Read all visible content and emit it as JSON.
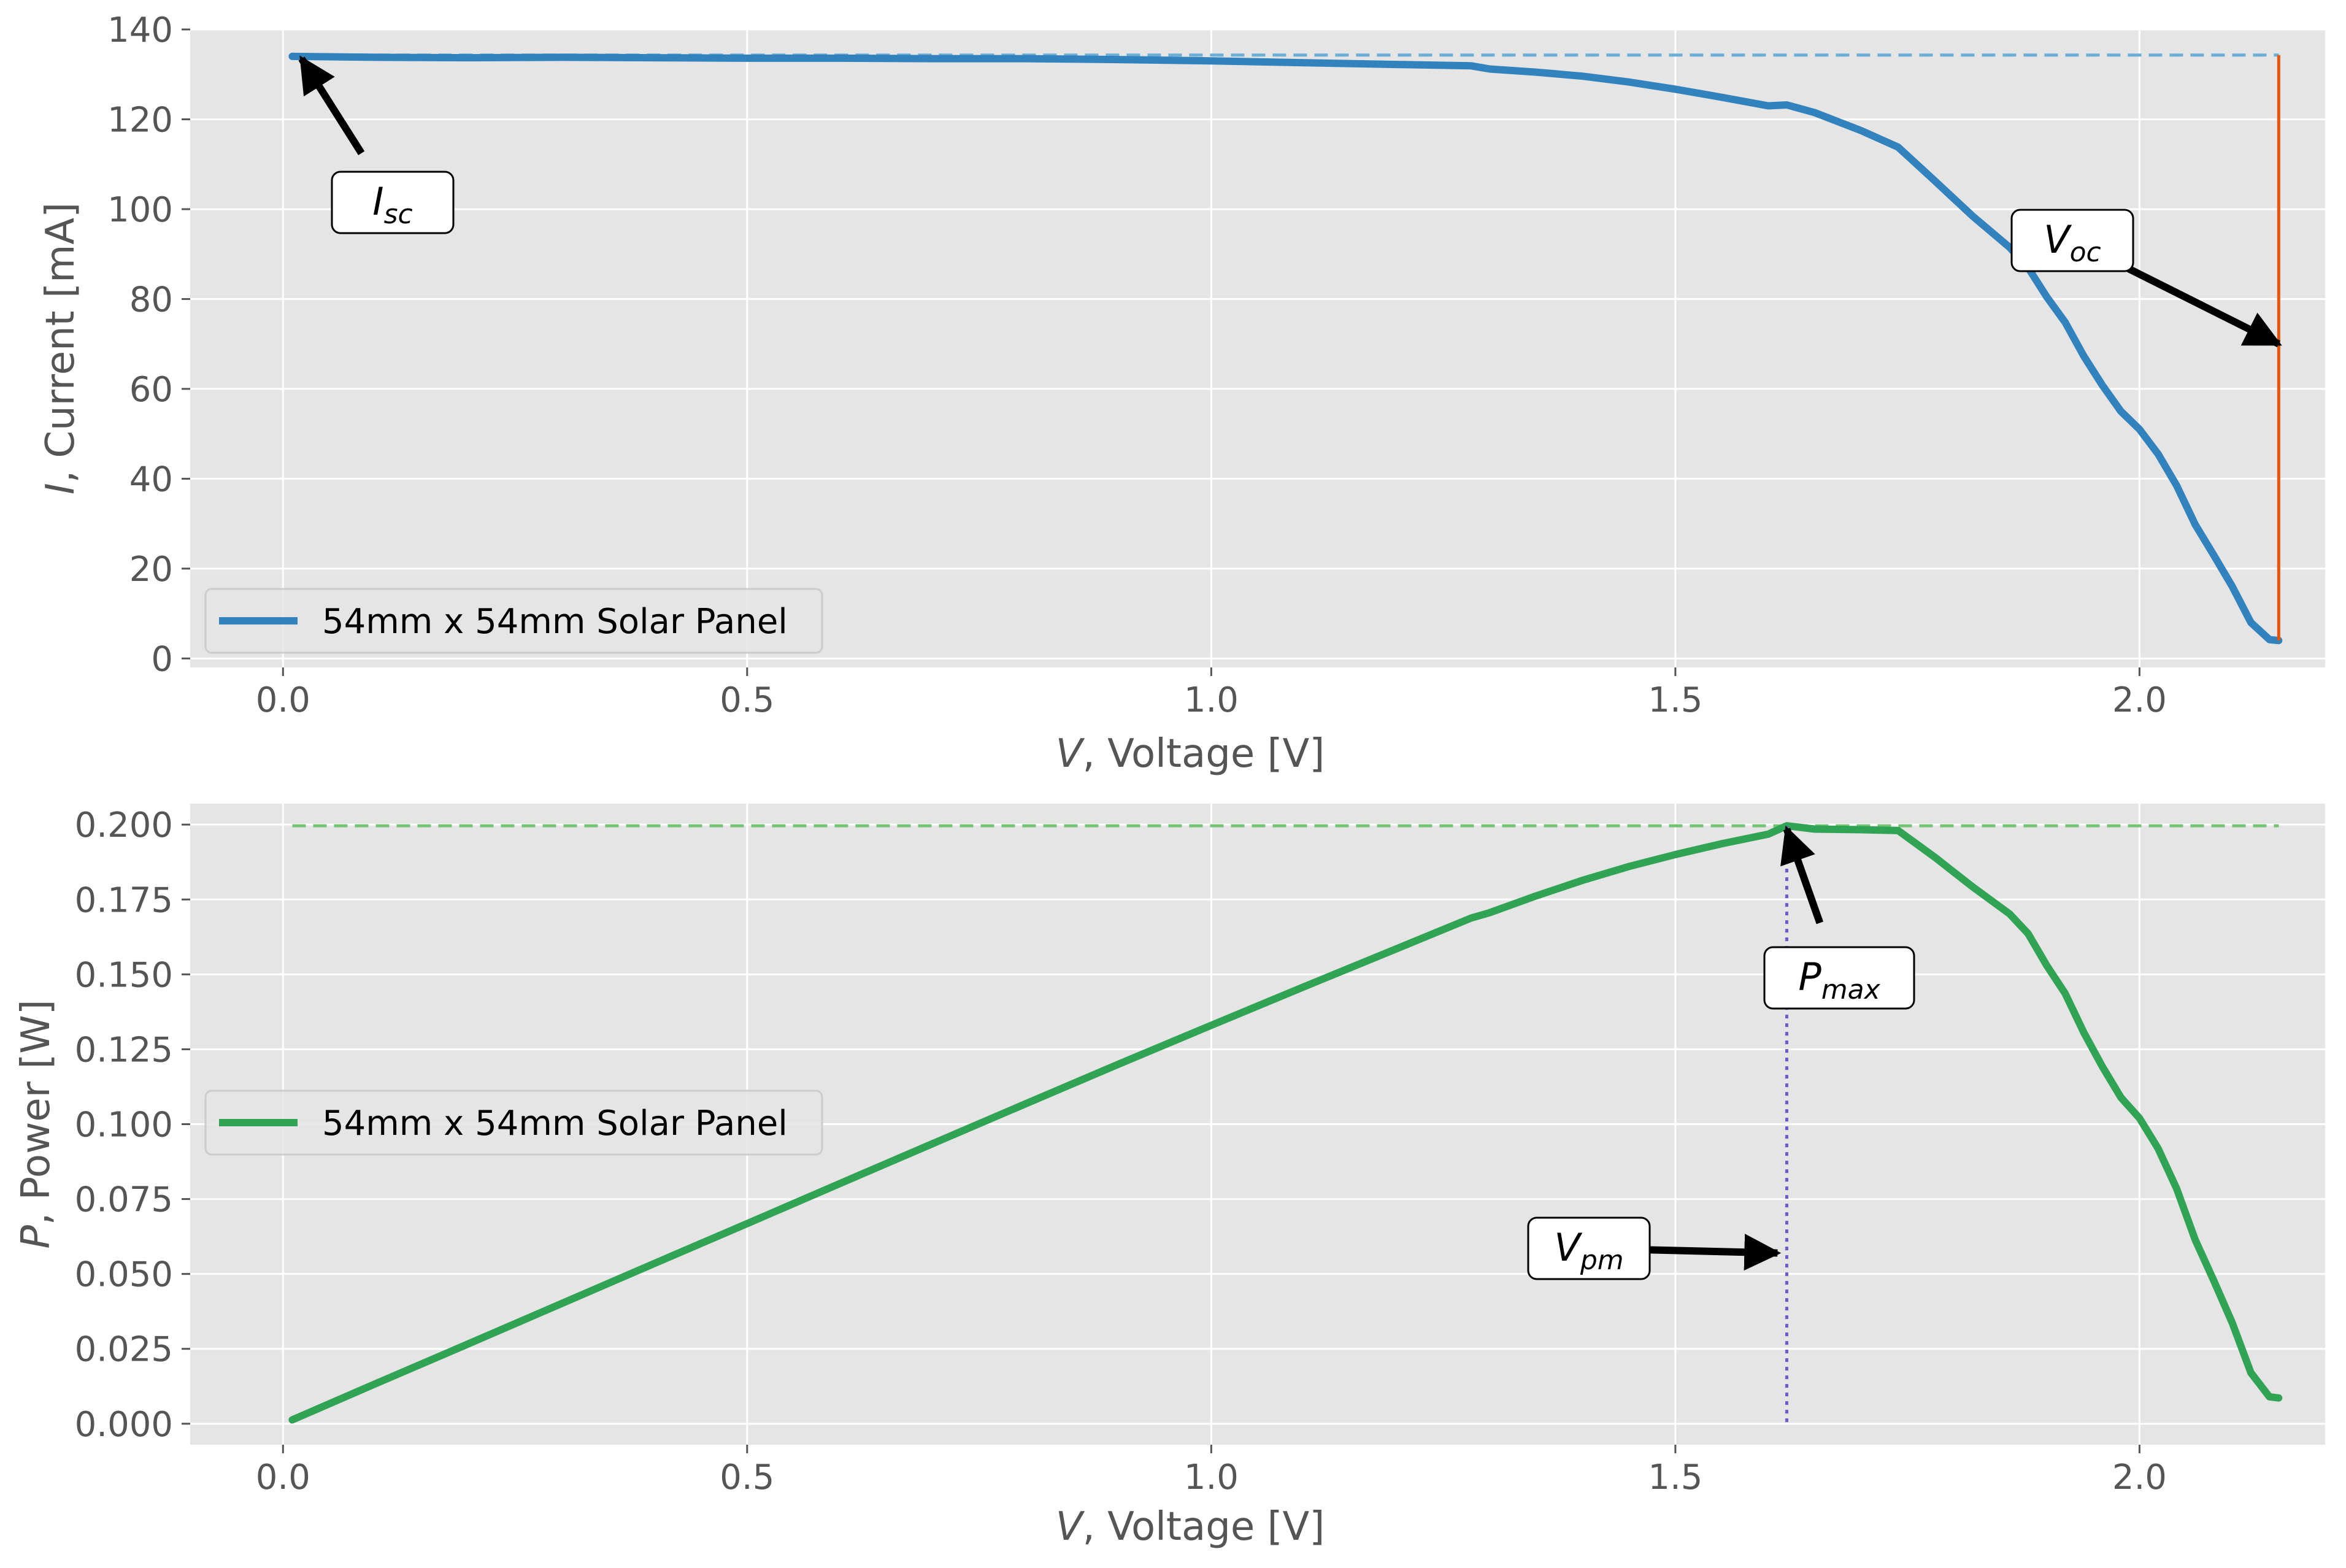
{
  "colors": {
    "background": "#ffffff",
    "axes_face": "#e5e5e5",
    "grid": "#ffffff",
    "current_series": "#3182bd",
    "power_series": "#31a354",
    "isc_reference": "#6baed6",
    "voc_line": "#e6550d",
    "pmax_reference": "#74c476",
    "vpm_line": "#6a5acd"
  },
  "chart_data": [
    {
      "type": "line",
      "title": "",
      "xlabel_var": "V",
      "xlabel_rest": ", Voltage [V]",
      "ylabel_var": "I",
      "ylabel_rest": ", Current [mA]",
      "xlim": [
        -0.1,
        2.2
      ],
      "ylim": [
        -2,
        140
      ],
      "xticks": [
        0.0,
        0.5,
        1.0,
        1.5,
        2.0
      ],
      "yticks": [
        0,
        20,
        40,
        60,
        80,
        100,
        120,
        140
      ],
      "xtick_labels": [
        "0.0",
        "0.5",
        "1.0",
        "1.5",
        "2.0"
      ],
      "ytick_labels": [
        "0",
        "20",
        "40",
        "60",
        "80",
        "100",
        "120",
        "140"
      ],
      "grid": true,
      "legend": {
        "position": "lower-left",
        "entries": [
          "54mm x 54mm Solar Panel"
        ]
      },
      "series": [
        {
          "name": "54mm x 54mm Solar Panel",
          "x": [
            0.01,
            0.1,
            0.2,
            0.3,
            0.4,
            0.5,
            0.6,
            0.7,
            0.8,
            0.9,
            1.0,
            1.1,
            1.2,
            1.28,
            1.3,
            1.35,
            1.4,
            1.45,
            1.5,
            1.55,
            1.6,
            1.62,
            1.65,
            1.7,
            1.74,
            1.78,
            1.82,
            1.86,
            1.88,
            1.9,
            1.92,
            1.94,
            1.96,
            1.98,
            2.0,
            2.02,
            2.04,
            2.06,
            2.08,
            2.1,
            2.12,
            2.14,
            2.15
          ],
          "y": [
            134,
            133.8,
            133.7,
            133.8,
            133.7,
            133.6,
            133.6,
            133.5,
            133.5,
            133.3,
            133.0,
            132.6,
            132.2,
            131.9,
            131.2,
            130.5,
            129.6,
            128.3,
            126.7,
            124.9,
            123.0,
            123.2,
            121.5,
            117.5,
            113.8,
            106.2,
            98.5,
            91.5,
            87.0,
            80.5,
            74.8,
            67.3,
            60.8,
            55.0,
            51.0,
            45.5,
            38.5,
            29.8,
            23.0,
            16.0,
            8.0,
            4.2,
            4.0
          ]
        }
      ],
      "reference_lines": {
        "isc_level": 134.3,
        "voc_voltage": 2.15
      },
      "annotations": [
        {
          "main": "I",
          "sub": "sc",
          "target_x": 0.02,
          "target_y": 133.5
        },
        {
          "main": "V",
          "sub": "oc",
          "target_x": 2.15,
          "target_y": 70
        }
      ]
    },
    {
      "type": "line",
      "title": "",
      "xlabel_var": "V",
      "xlabel_rest": ", Voltage [V]",
      "ylabel_var": "P",
      "ylabel_rest": ", Power [W]",
      "xlim": [
        -0.1,
        2.2
      ],
      "ylim": [
        -0.007,
        0.207
      ],
      "xticks": [
        0.0,
        0.5,
        1.0,
        1.5,
        2.0
      ],
      "yticks": [
        0.0,
        0.025,
        0.05,
        0.075,
        0.1,
        0.125,
        0.15,
        0.175,
        0.2
      ],
      "xtick_labels": [
        "0.0",
        "0.5",
        "1.0",
        "1.5",
        "2.0"
      ],
      "ytick_labels": [
        "0.000",
        "0.025",
        "0.050",
        "0.075",
        "0.100",
        "0.125",
        "0.150",
        "0.175",
        "0.200"
      ],
      "grid": true,
      "legend": {
        "position": "center-left",
        "entries": [
          "54mm x 54mm Solar Panel"
        ]
      },
      "series": [
        {
          "name": "54mm x 54mm Solar Panel",
          "x": [
            0.01,
            0.1,
            0.2,
            0.3,
            0.4,
            0.5,
            0.6,
            0.7,
            0.8,
            0.9,
            1.0,
            1.1,
            1.2,
            1.28,
            1.3,
            1.35,
            1.4,
            1.45,
            1.5,
            1.55,
            1.6,
            1.62,
            1.65,
            1.7,
            1.74,
            1.78,
            1.82,
            1.86,
            1.88,
            1.9,
            1.92,
            1.94,
            1.96,
            1.98,
            2.0,
            2.02,
            2.04,
            2.06,
            2.08,
            2.1,
            2.12,
            2.14,
            2.15
          ],
          "y": [
            0.0013,
            0.0134,
            0.0267,
            0.0401,
            0.0535,
            0.0668,
            0.0802,
            0.0935,
            0.1068,
            0.12,
            0.133,
            0.1459,
            0.1586,
            0.1688,
            0.1706,
            0.1762,
            0.1814,
            0.186,
            0.19,
            0.1936,
            0.1968,
            0.1996,
            0.1985,
            0.1983,
            0.198,
            0.189,
            0.1793,
            0.1702,
            0.1636,
            0.153,
            0.1436,
            0.1306,
            0.1192,
            0.1089,
            0.102,
            0.0919,
            0.0785,
            0.0614,
            0.0478,
            0.0336,
            0.017,
            0.009,
            0.0086
          ]
        }
      ],
      "reference_lines": {
        "pmax_level": 0.1996,
        "vpm_voltage": 1.62
      },
      "annotations": [
        {
          "main": "P",
          "sub": "max",
          "target_x": 1.62,
          "target_y": 0.1985
        },
        {
          "main": "V",
          "sub": "pm",
          "target_x": 1.61,
          "target_y": 0.057
        }
      ]
    }
  ]
}
